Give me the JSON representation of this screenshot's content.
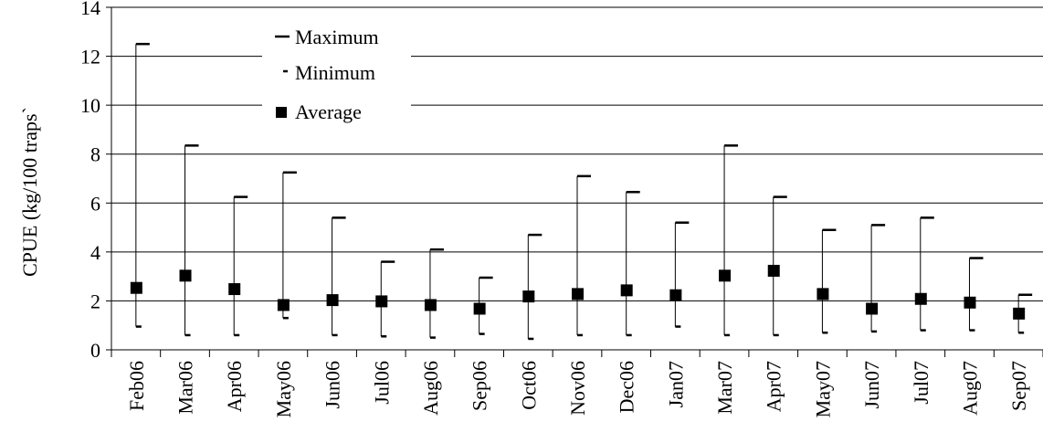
{
  "chart_data": {
    "type": "scatter",
    "subtype": "min-max range with average markers",
    "categories": [
      "Feb06",
      "Mar06",
      "Apr06",
      "May06",
      "Jun06",
      "Jul06",
      "Aug06",
      "Sep06",
      "Oct06",
      "Nov06",
      "Dec06",
      "Jan07",
      "Mar07",
      "Apr07",
      "May07",
      "Jun07",
      "Jul07",
      "Aug07",
      "Sep07"
    ],
    "series": [
      {
        "name": "Maximum",
        "marker": "long dash",
        "values": [
          12.5,
          8.35,
          6.25,
          7.25,
          5.4,
          3.6,
          4.1,
          2.95,
          4.7,
          7.1,
          6.45,
          5.2,
          8.35,
          6.25,
          4.9,
          5.1,
          5.4,
          3.75,
          2.25
        ]
      },
      {
        "name": "Minimum",
        "marker": "short dash",
        "values": [
          0.95,
          0.6,
          0.6,
          1.3,
          0.6,
          0.55,
          0.5,
          0.65,
          0.45,
          0.6,
          0.6,
          0.95,
          0.6,
          0.6,
          0.7,
          0.75,
          0.8,
          0.8,
          0.7
        ]
      },
      {
        "name": "Average",
        "marker": "filled square",
        "values": [
          2.55,
          3.05,
          2.5,
          1.85,
          2.05,
          2.0,
          1.85,
          1.7,
          2.2,
          2.3,
          2.45,
          2.25,
          3.05,
          3.25,
          2.3,
          1.7,
          2.1,
          1.95,
          1.5
        ]
      }
    ],
    "ylabel": "CPUE (kg/100 traps)",
    "ylabel_display": "CPUE (kg/100 traps`",
    "xlabel": "",
    "ylim": [
      0,
      14
    ],
    "yticks": [
      "0",
      "2",
      "4",
      "6",
      "8",
      "10",
      "12",
      "14"
    ],
    "grid": "horizontal",
    "legend_position": "top-left",
    "colors": {
      "marks": "#000000",
      "grid": "#000000",
      "background": "#ffffff"
    }
  }
}
